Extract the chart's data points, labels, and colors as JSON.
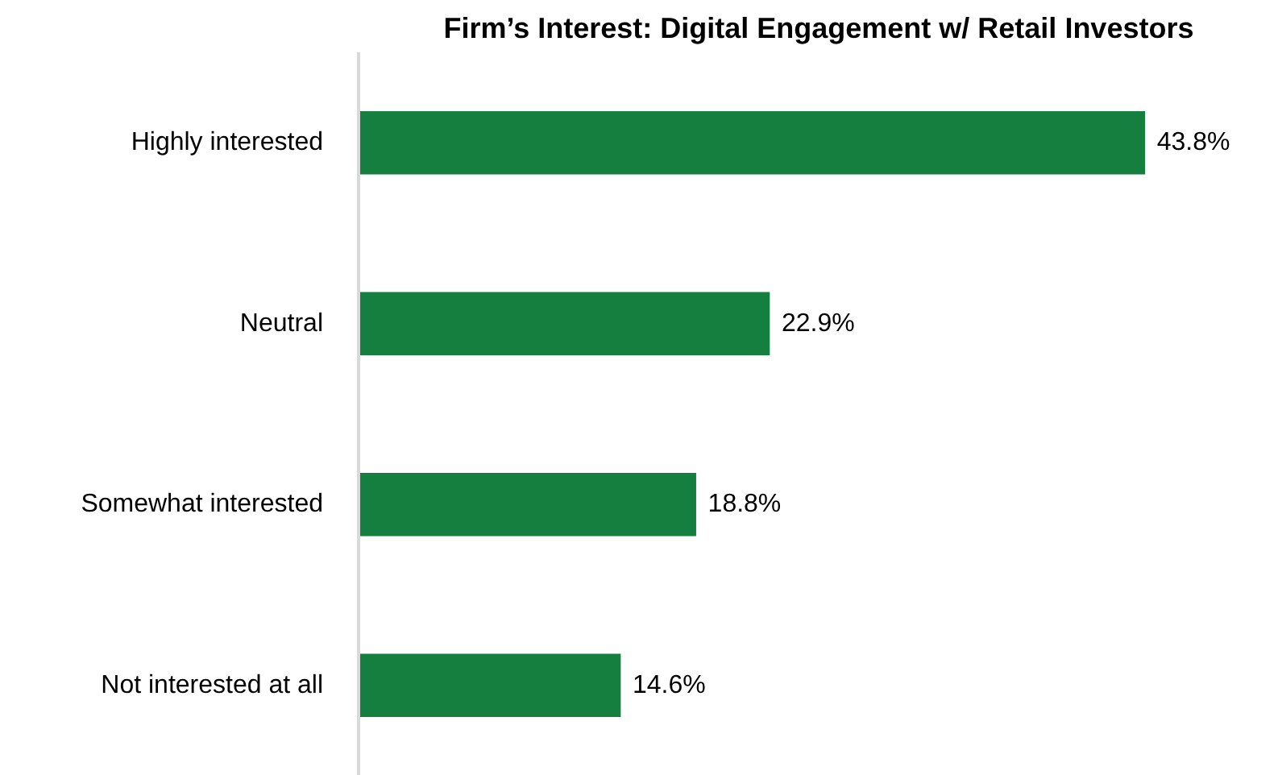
{
  "chart_data": {
    "type": "bar",
    "orientation": "horizontal",
    "title": "Firm’s Interest: Digital Engagement w/ Retail Investors",
    "categories": [
      "Highly interested",
      "Neutral",
      "Somewhat interested",
      "Not interested at all"
    ],
    "values": [
      43.8,
      22.9,
      18.8,
      14.6
    ],
    "value_labels": [
      "43.8%",
      "22.9%",
      "18.8%",
      "14.6%"
    ],
    "color": "#157f3f",
    "grid": false
  }
}
